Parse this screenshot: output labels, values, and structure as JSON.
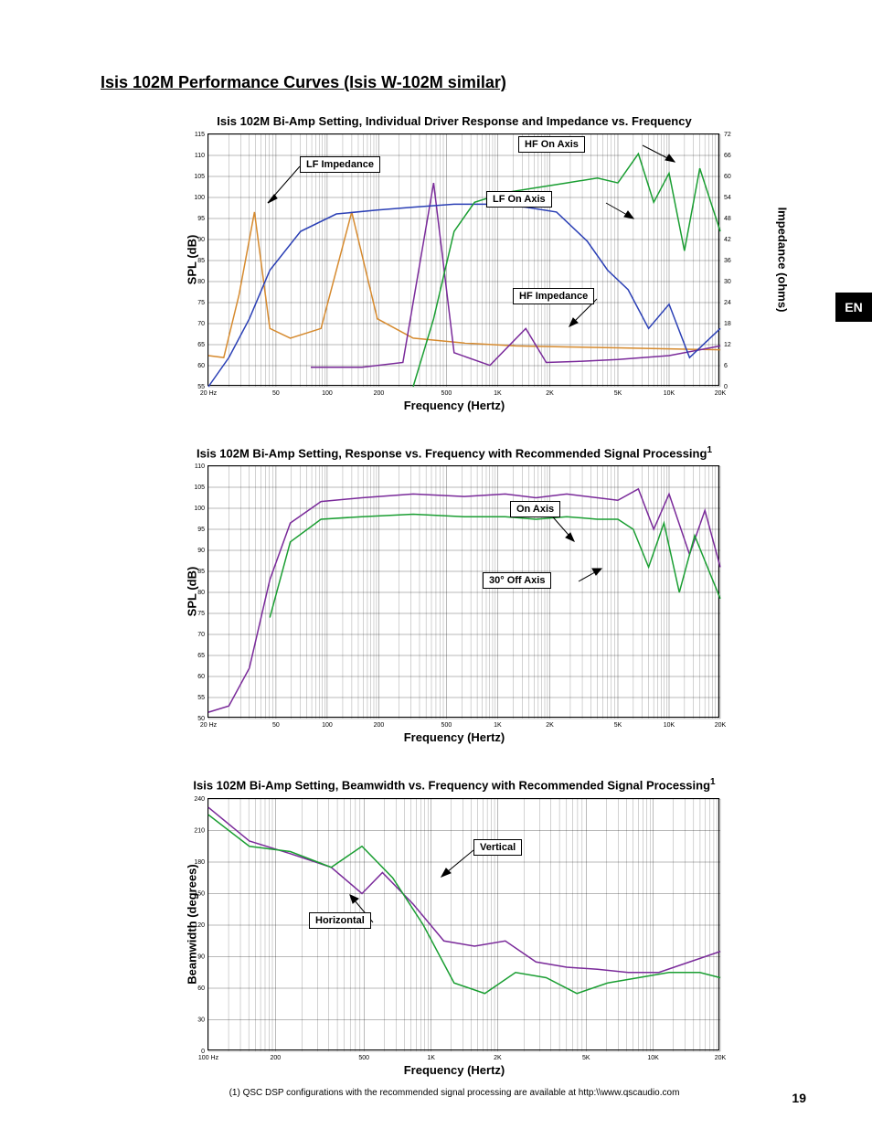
{
  "page": {
    "title": "Isis 102M Performance Curves (Isis W-102M similar)",
    "lang_tab": "EN",
    "page_number": "19",
    "footnote": "(1) QSC DSP configurations with the recommended signal processing are available at http:\\\\www.qscaudio.com"
  },
  "chart1": {
    "title": "Isis 102M Bi-Amp Setting, Individual Driver Response and Impedance vs. Frequency",
    "xlabel": "Frequency (Hertz)",
    "ylabel": "SPL (dB)",
    "y2label": "Impedance (ohms)",
    "ylim": [
      55,
      115
    ],
    "ytick_step": 5,
    "y2lim": [
      0,
      72
    ],
    "y2tick_step": 6,
    "xlim": [
      "20",
      "20K"
    ],
    "xticks": [
      "20 Hz",
      "50",
      "100",
      "200",
      "500",
      "1K",
      "2K",
      "5K",
      "10K",
      "20K"
    ],
    "grid_color": "#000000",
    "background_color": "#ffffff",
    "callouts": {
      "hf_on_axis": "HF On Axis",
      "lf_impedance": "LF Impedance",
      "lf_on_axis": "LF On Axis",
      "hf_impedance": "HF Impedance"
    },
    "series": {
      "lf_imp": {
        "color": "#d68a2e",
        "points": [
          [
            0,
            32
          ],
          [
            3,
            30
          ],
          [
            6,
            95
          ],
          [
            9,
            180
          ],
          [
            12,
            60
          ],
          [
            16,
            50
          ],
          [
            22,
            60
          ],
          [
            28,
            180
          ],
          [
            33,
            70
          ],
          [
            40,
            50
          ],
          [
            50,
            45
          ],
          [
            60,
            42
          ],
          [
            70,
            41
          ],
          [
            80,
            40
          ],
          [
            90,
            39
          ],
          [
            100,
            38
          ]
        ]
      },
      "hf_imp": {
        "color": "#7a2a9a",
        "points": [
          [
            20,
            20
          ],
          [
            30,
            20
          ],
          [
            38,
            25
          ],
          [
            44,
            210
          ],
          [
            48,
            35
          ],
          [
            55,
            22
          ],
          [
            62,
            60
          ],
          [
            66,
            25
          ],
          [
            72,
            26
          ],
          [
            80,
            28
          ],
          [
            90,
            32
          ],
          [
            100,
            42
          ]
        ]
      },
      "lf_axis": {
        "color": "#2a3fb5",
        "points": [
          [
            0,
            0
          ],
          [
            4,
            30
          ],
          [
            8,
            70
          ],
          [
            12,
            120
          ],
          [
            18,
            160
          ],
          [
            25,
            178
          ],
          [
            33,
            182
          ],
          [
            40,
            185
          ],
          [
            48,
            188
          ],
          [
            55,
            188
          ],
          [
            62,
            185
          ],
          [
            68,
            180
          ],
          [
            74,
            150
          ],
          [
            78,
            120
          ],
          [
            82,
            100
          ],
          [
            86,
            60
          ],
          [
            90,
            85
          ],
          [
            94,
            30
          ],
          [
            100,
            60
          ]
        ]
      },
      "hf_axis": {
        "color": "#1a9e32",
        "points": [
          [
            40,
            0
          ],
          [
            44,
            70
          ],
          [
            48,
            160
          ],
          [
            52,
            190
          ],
          [
            58,
            200
          ],
          [
            64,
            205
          ],
          [
            70,
            210
          ],
          [
            76,
            215
          ],
          [
            80,
            210
          ],
          [
            84,
            240
          ],
          [
            87,
            190
          ],
          [
            90,
            220
          ],
          [
            93,
            140
          ],
          [
            96,
            225
          ],
          [
            100,
            160
          ]
        ]
      }
    }
  },
  "chart2": {
    "title": "Isis 102M Bi-Amp Setting, Response vs. Frequency with Recommended Signal Processing",
    "title_sup": "1",
    "xlabel": "Frequency (Hertz)",
    "ylabel": "SPL (dB)",
    "ylim": [
      50,
      110
    ],
    "ytick_step": 5,
    "xticks": [
      "20 Hz",
      "50",
      "100",
      "200",
      "500",
      "1K",
      "2K",
      "5K",
      "10K",
      "20K"
    ],
    "callouts": {
      "on_axis": "On Axis",
      "off_axis": "30° Off Axis"
    },
    "series": {
      "on_axis": {
        "color": "#7a2a9a",
        "points": [
          [
            0,
            5
          ],
          [
            4,
            10
          ],
          [
            8,
            40
          ],
          [
            12,
            110
          ],
          [
            16,
            155
          ],
          [
            22,
            172
          ],
          [
            30,
            175
          ],
          [
            40,
            178
          ],
          [
            50,
            176
          ],
          [
            58,
            178
          ],
          [
            64,
            175
          ],
          [
            70,
            178
          ],
          [
            76,
            175
          ],
          [
            80,
            173
          ],
          [
            84,
            182
          ],
          [
            87,
            150
          ],
          [
            90,
            178
          ],
          [
            94,
            130
          ],
          [
            97,
            165
          ],
          [
            100,
            120
          ]
        ]
      },
      "off_axis": {
        "color": "#1a9e32",
        "points": [
          [
            12,
            80
          ],
          [
            16,
            140
          ],
          [
            22,
            158
          ],
          [
            30,
            160
          ],
          [
            40,
            162
          ],
          [
            50,
            160
          ],
          [
            58,
            160
          ],
          [
            64,
            158
          ],
          [
            70,
            160
          ],
          [
            76,
            158
          ],
          [
            80,
            158
          ],
          [
            83,
            150
          ],
          [
            86,
            120
          ],
          [
            89,
            155
          ],
          [
            92,
            100
          ],
          [
            95,
            145
          ],
          [
            100,
            95
          ]
        ]
      }
    }
  },
  "chart3": {
    "title": "Isis 102M Bi-Amp Setting, Beamwidth vs. Frequency with Recommended Signal Processing",
    "title_sup": "1",
    "xlabel": "Frequency (Hertz)",
    "ylabel": "Beamwidth (degrees)",
    "ylim": [
      0,
      240
    ],
    "ytick_step": 30,
    "xticks": [
      "100 Hz",
      "200",
      "500",
      "1K",
      "2K",
      "5K",
      "10K",
      "20K"
    ],
    "callouts": {
      "vertical": "Vertical",
      "horizontal": "Horizontal"
    },
    "series": {
      "vertical": {
        "color": "#7a2a9a",
        "points": [
          [
            0,
            232
          ],
          [
            8,
            200
          ],
          [
            16,
            188
          ],
          [
            24,
            175
          ],
          [
            30,
            150
          ],
          [
            34,
            170
          ],
          [
            40,
            140
          ],
          [
            46,
            105
          ],
          [
            52,
            100
          ],
          [
            58,
            105
          ],
          [
            64,
            85
          ],
          [
            70,
            80
          ],
          [
            76,
            78
          ],
          [
            82,
            75
          ],
          [
            88,
            75
          ],
          [
            94,
            85
          ],
          [
            100,
            95
          ]
        ]
      },
      "horizontal": {
        "color": "#1a9e32",
        "points": [
          [
            0,
            225
          ],
          [
            8,
            195
          ],
          [
            16,
            190
          ],
          [
            24,
            175
          ],
          [
            30,
            195
          ],
          [
            36,
            165
          ],
          [
            42,
            120
          ],
          [
            48,
            65
          ],
          [
            54,
            55
          ],
          [
            60,
            75
          ],
          [
            66,
            70
          ],
          [
            72,
            55
          ],
          [
            78,
            65
          ],
          [
            84,
            70
          ],
          [
            90,
            75
          ],
          [
            96,
            75
          ],
          [
            100,
            70
          ]
        ]
      }
    }
  }
}
